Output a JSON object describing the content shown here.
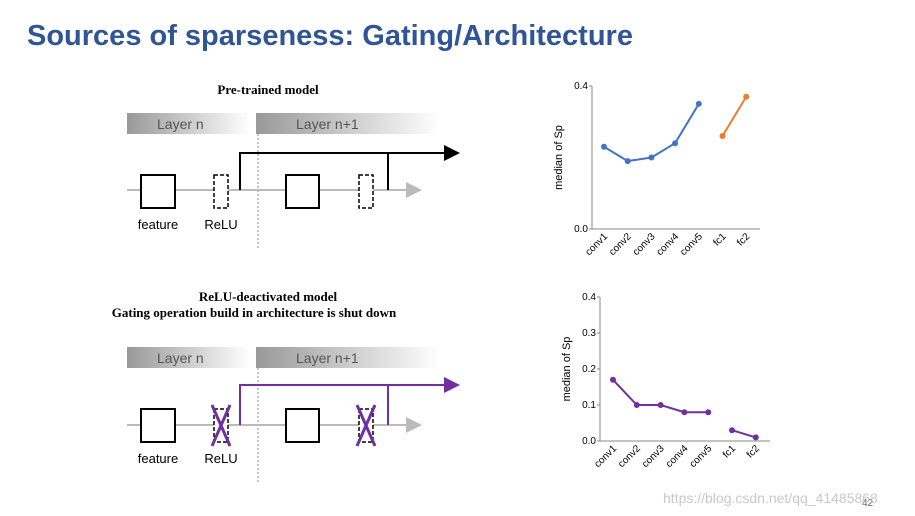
{
  "title": "Sources of sparseness: Gating/Architecture",
  "diagrams": [
    {
      "caption": [
        "Pre-trained model"
      ],
      "layer_a": "Layer n",
      "layer_b": "Layer n+1",
      "box_label": "feature",
      "gate_label": "ReLU"
    },
    {
      "caption": [
        "ReLU-deactivated model",
        "Gating operation build in architecture is shut down"
      ],
      "layer_a": "Layer n",
      "layer_b": "Layer n+1",
      "box_label": "feature",
      "gate_label": "ReLU"
    }
  ],
  "chart_data": [
    {
      "type": "line",
      "y_label": "median of Sp",
      "categories": [
        "conv1",
        "conv2",
        "conv3",
        "conv4",
        "conv5",
        "fc1",
        "fc2"
      ],
      "series": [
        {
          "color": "#4472c4",
          "values": [
            0.23,
            0.19,
            0.2,
            0.24,
            0.35,
            null,
            null
          ]
        },
        {
          "color": "#ed7d31",
          "values": [
            null,
            null,
            null,
            null,
            null,
            0.26,
            0.37
          ]
        }
      ],
      "ylim": [
        0,
        0.4
      ],
      "yticks": [
        {
          "value": 0,
          "label": "0.0"
        },
        0.4
      ]
    },
    {
      "type": "line",
      "y_label": "median of Sp",
      "categories": [
        "conv1",
        "conv2",
        "conv3",
        "conv4",
        "conv5",
        "fc1",
        "fc2"
      ],
      "series": [
        {
          "color": "#7030a0",
          "values": [
            0.17,
            0.1,
            0.1,
            0.08,
            0.08,
            null,
            null
          ]
        },
        {
          "color": "#7030a0",
          "values": [
            null,
            null,
            null,
            null,
            null,
            0.03,
            0.01
          ]
        }
      ],
      "ylim": [
        0,
        0.4
      ],
      "yticks": [
        {
          "value": 0,
          "label": "0.0"
        },
        0.1,
        0.2,
        0.3,
        0.4
      ]
    }
  ],
  "page_number": "42",
  "watermark": "https://blog.csdn.net/qq_41485868"
}
